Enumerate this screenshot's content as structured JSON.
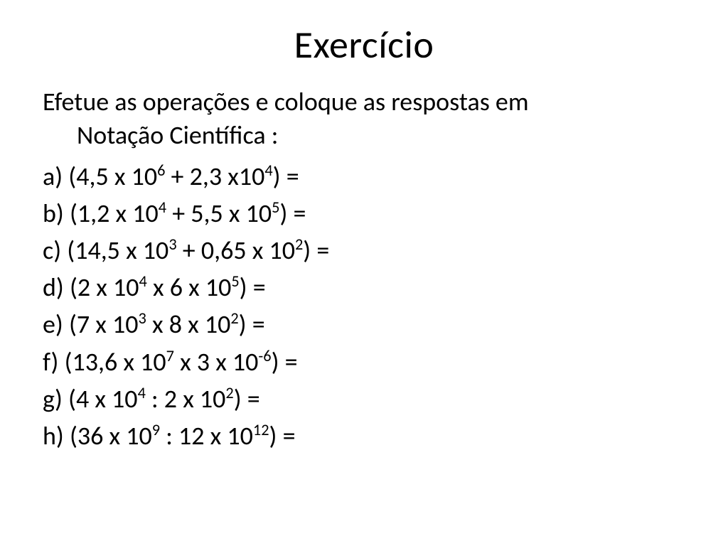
{
  "title": "Exercício",
  "instruction_line1": "Efetue as operações e coloque as respostas em",
  "instruction_line2": "Notação Científica :",
  "problems": {
    "a": {
      "label": "a)",
      "m1": "4,5",
      "e1": "6",
      "op": "+",
      "m2": "2,3",
      "prefix2": "x10",
      "e2": "4"
    },
    "b": {
      "label": "b)",
      "m1": "1,2",
      "e1": "4",
      "op": "+",
      "m2": "5,5",
      "prefix2": "x 10",
      "e2": "5",
      "trail": " "
    },
    "c": {
      "label": "c)",
      "m1": "14,5",
      "e1": "3",
      "op": "+",
      "m2": "0,65",
      "prefix2": "x 10",
      "e2": "2",
      "trail": " "
    },
    "d": {
      "label": "d)",
      "m1": "2",
      "e1": "4",
      "op": "x",
      "m2": "6",
      "prefix2": "x 10",
      "e2": "5",
      "trail": " "
    },
    "e": {
      "label": "e)",
      "m1": "7",
      "e1": "3",
      "op": "x",
      "m2": "8",
      "prefix2": "x 10",
      "e2": "2",
      "trail": " "
    },
    "f": {
      "label": "f)",
      "m1": "13,6",
      "e1": "7",
      "op": "x",
      "m2": "3",
      "prefix2": "x 10",
      "e2": "-6",
      "trail": " "
    },
    "g": {
      "label": "g)",
      "m1": "4",
      "e1": "4",
      "op": ":",
      "m2": "2",
      "prefix2": "x 10",
      "e2": "2"
    },
    "h": {
      "label": "h)",
      "m1": "36",
      "e1": "9",
      "op": ":",
      "m2": "12",
      "prefix2": "x 10",
      "e2": "12"
    }
  },
  "colors": {
    "background": "#ffffff",
    "text": "#000000"
  },
  "font": {
    "family": "Calibri",
    "title_size": 54,
    "body_size": 36
  }
}
